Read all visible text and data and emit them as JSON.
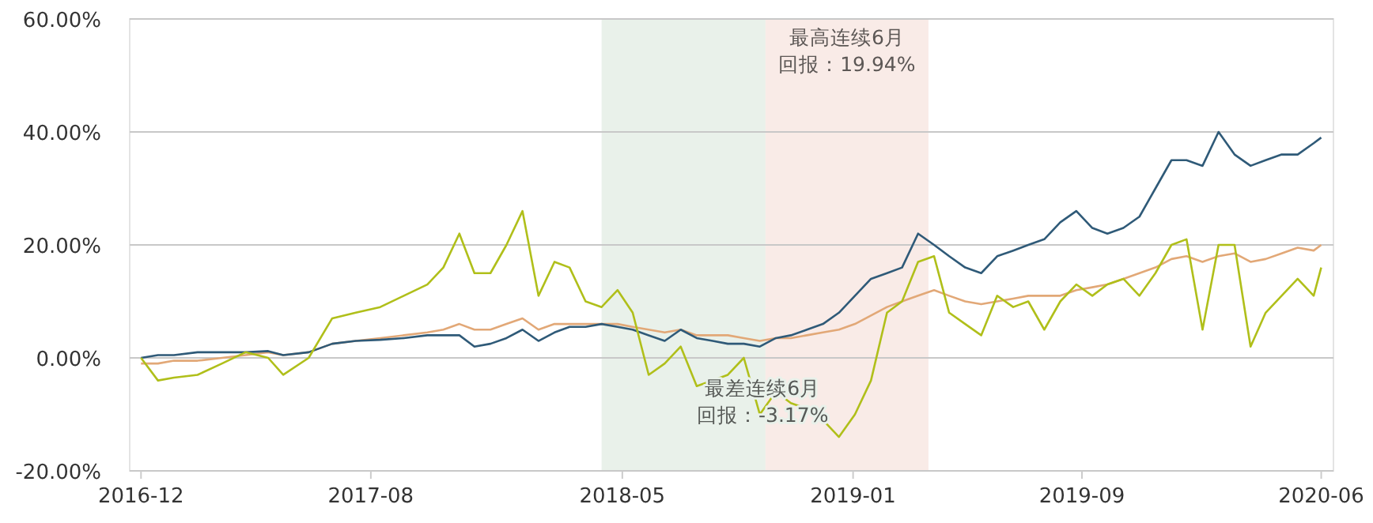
{
  "chart_data": {
    "type": "line",
    "x": [
      "2016-12-30",
      "2017-01-17",
      "2017-02-03",
      "2017-02-28",
      "2017-03-26",
      "2017-04-20",
      "2017-05-14",
      "2017-05-30",
      "2017-06-26",
      "2017-07-21",
      "2017-08-15",
      "2017-09-10",
      "2017-10-05",
      "2017-10-30",
      "2017-11-16",
      "2017-12-03",
      "2017-12-19",
      "2018-01-05",
      "2018-01-22",
      "2018-02-08",
      "2018-02-25",
      "2018-03-14",
      "2018-03-30",
      "2018-04-16",
      "2018-05-03",
      "2018-05-20",
      "2018-06-05",
      "2018-06-22",
      "2018-07-09",
      "2018-07-26",
      "2018-08-12",
      "2018-08-29",
      "2018-09-14",
      "2018-10-01",
      "2018-10-18",
      "2018-11-04",
      "2018-11-20",
      "2018-12-07",
      "2018-12-24",
      "2019-01-10",
      "2019-01-27",
      "2019-02-13",
      "2019-03-02",
      "2019-03-18",
      "2019-04-04",
      "2019-04-21",
      "2019-05-07",
      "2019-05-24",
      "2019-06-10",
      "2019-06-27",
      "2019-07-14",
      "2019-07-30",
      "2019-08-16",
      "2019-09-02",
      "2019-09-19",
      "2019-10-06",
      "2019-10-22",
      "2019-11-08",
      "2019-11-25",
      "2019-12-12",
      "2019-12-29",
      "2020-01-14",
      "2020-01-31",
      "2020-02-17",
      "2020-03-05",
      "2020-03-22",
      "2020-04-07",
      "2020-04-24",
      "2020-05-11",
      "2020-05-28",
      "2020-06-05"
    ],
    "series": [
      {
        "color": "#e2a877",
        "values": [
          -1,
          -1,
          -0.5,
          -0.5,
          0,
          0.5,
          1,
          0.5,
          1,
          2.5,
          3,
          3.5,
          4,
          4.5,
          5,
          6,
          5,
          5,
          6,
          7,
          5,
          6,
          6,
          6,
          6,
          6,
          5.5,
          5,
          4.5,
          5,
          4,
          4,
          4,
          3.5,
          3,
          3.5,
          3.5,
          4,
          4.5,
          5,
          6,
          7.5,
          9,
          10,
          11,
          12,
          11,
          10,
          9.5,
          10,
          10.5,
          11,
          11,
          11,
          12,
          12.5,
          13,
          14,
          15,
          16,
          17.5,
          18,
          17,
          18,
          18.5,
          17,
          17.5,
          18.5,
          19.5,
          19,
          20
        ]
      },
      {
        "color": "#2f5a78",
        "values": [
          0,
          0.5,
          0.5,
          1,
          1,
          1,
          1.2,
          0.5,
          1,
          2.5,
          3,
          3.2,
          3.5,
          4,
          4,
          4,
          2,
          2.5,
          3.5,
          5,
          3,
          4.5,
          5.5,
          5.5,
          6,
          5.5,
          5,
          4,
          3,
          5,
          3.5,
          3,
          2.5,
          2.5,
          2,
          3.5,
          4,
          5,
          6,
          8,
          11,
          14,
          15,
          16,
          22,
          20,
          18,
          16,
          15,
          18,
          19,
          20,
          21,
          24,
          26,
          23,
          22,
          23,
          25,
          30,
          35,
          35,
          34,
          40,
          36,
          34,
          35,
          36,
          36,
          38,
          39
        ]
      },
      {
        "color": "#b0bf1a",
        "values": [
          0,
          -4,
          -3.5,
          -3,
          -1,
          1,
          0,
          -3,
          0,
          7,
          8,
          9,
          11,
          13,
          16,
          22,
          15,
          15,
          20,
          26,
          11,
          17,
          16,
          10,
          9,
          12,
          8,
          -3,
          -1,
          2,
          -5,
          -4,
          -3,
          0,
          -10,
          -6,
          -8,
          -9,
          -11,
          -14,
          -10,
          -4,
          8,
          10,
          17,
          18,
          8,
          6,
          4,
          11,
          9,
          10,
          5,
          10,
          13,
          11,
          13,
          14,
          11,
          15,
          20,
          21,
          5,
          20,
          20,
          2,
          8,
          11,
          14,
          11,
          16
        ]
      }
    ],
    "xlim": [
      "2016-12-18",
      "2020-06-18"
    ],
    "xticks": [
      {
        "value": "2016-12-30",
        "label": "2016-12"
      },
      {
        "value": "2017-08-31",
        "label": "2017-08"
      },
      {
        "value": "2018-05-25",
        "label": "2018-05"
      },
      {
        "value": "2019-01-25",
        "label": "2019-01"
      },
      {
        "value": "2019-09-25",
        "label": "2019-09"
      },
      {
        "value": "2020-06-05",
        "label": "2020-06"
      }
    ],
    "ylim": [
      -20,
      60
    ],
    "yticks": [
      {
        "value": -20,
        "label": "-20.00%"
      },
      {
        "value": 0,
        "label": "0.00%"
      },
      {
        "value": 20,
        "label": "20.00%"
      },
      {
        "value": 40,
        "label": "40.00%"
      },
      {
        "value": 60,
        "label": "60.00%"
      }
    ],
    "grid": "y",
    "bands": [
      {
        "axis": "x",
        "from": "2018-05-03",
        "to": "2018-10-24",
        "color": "#e9f1ea",
        "label": "最差连续6月回报：-3.17%"
      },
      {
        "axis": "x",
        "from": "2018-10-24",
        "to": "2019-04-15",
        "color": "#f9ebe7",
        "label": "最高连续6月回报：19.94%"
      }
    ]
  }
}
